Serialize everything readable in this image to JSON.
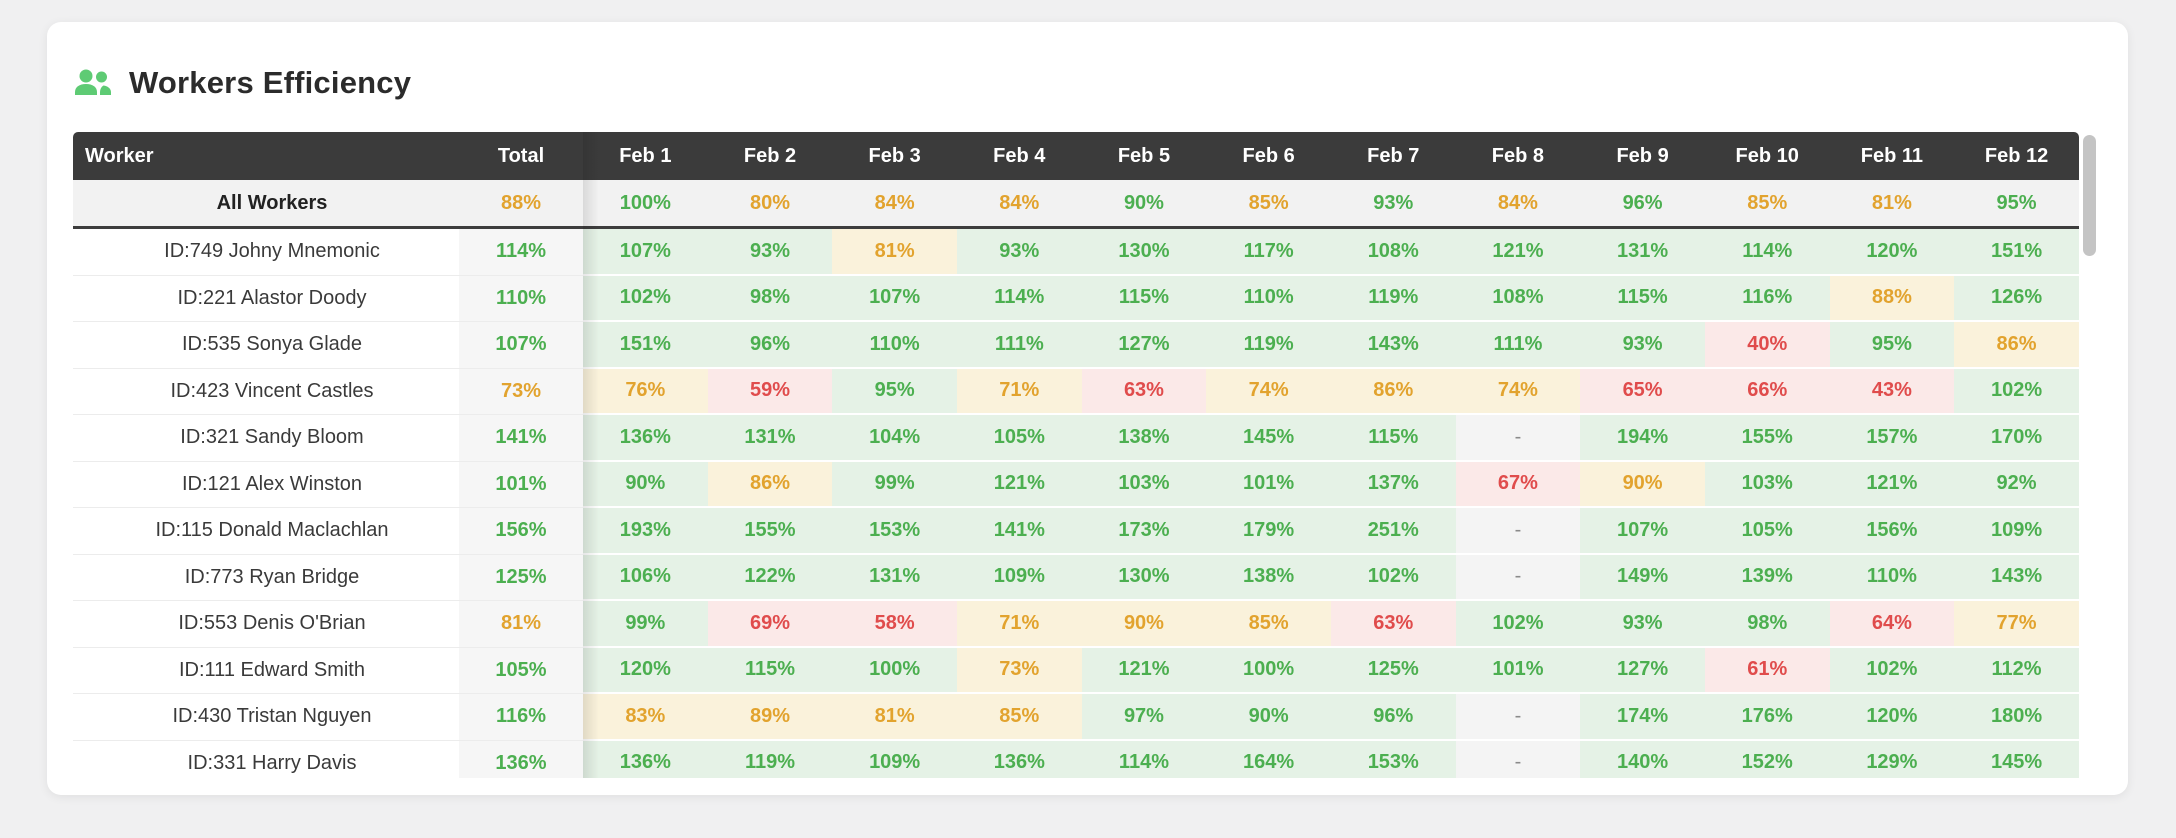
{
  "header": {
    "title": "Workers Efficiency",
    "icon": "users-icon"
  },
  "colors": {
    "accent_green_text": "#4caf50",
    "amber_text": "#e2a32e",
    "red_text": "#e04c4c",
    "green_cell_bg": "#e5f2e6",
    "amber_cell_bg": "#faf2db",
    "red_cell_bg": "#fbe9e8",
    "no_data_cell_bg": "#f4f4f4",
    "table_header_bg": "#3b3b3b",
    "summary_row_bg": "#f2f2f2",
    "total_column_bg": "#f6f6f6",
    "icon_green": "#5ecb74"
  },
  "status_legend": {
    "g": "green",
    "a": "amber",
    "r": "red",
    "n": "no-data"
  },
  "table": {
    "columns": [
      "Worker",
      "Total",
      "Feb 1",
      "Feb 2",
      "Feb 3",
      "Feb 4",
      "Feb 5",
      "Feb 6",
      "Feb 7",
      "Feb 8",
      "Feb 9",
      "Feb 10",
      "Feb 11",
      "Feb 12"
    ],
    "summary_row": {
      "label": "All Workers",
      "total": [
        "88%",
        "a"
      ],
      "cells": [
        [
          "100%",
          "g"
        ],
        [
          "80%",
          "a"
        ],
        [
          "84%",
          "a"
        ],
        [
          "84%",
          "a"
        ],
        [
          "90%",
          "g"
        ],
        [
          "85%",
          "a"
        ],
        [
          "93%",
          "g"
        ],
        [
          "84%",
          "a"
        ],
        [
          "96%",
          "g"
        ],
        [
          "85%",
          "a"
        ],
        [
          "81%",
          "a"
        ],
        [
          "95%",
          "g"
        ]
      ]
    },
    "rows": [
      {
        "worker": "ID:749 Johny Mnemonic",
        "total": [
          "114%",
          "g"
        ],
        "cells": [
          [
            "107%",
            "g"
          ],
          [
            "93%",
            "g"
          ],
          [
            "81%",
            "a"
          ],
          [
            "93%",
            "g"
          ],
          [
            "130%",
            "g"
          ],
          [
            "117%",
            "g"
          ],
          [
            "108%",
            "g"
          ],
          [
            "121%",
            "g"
          ],
          [
            "131%",
            "g"
          ],
          [
            "114%",
            "g"
          ],
          [
            "120%",
            "g"
          ],
          [
            "151%",
            "g"
          ]
        ]
      },
      {
        "worker": "ID:221 Alastor Doody",
        "total": [
          "110%",
          "g"
        ],
        "cells": [
          [
            "102%",
            "g"
          ],
          [
            "98%",
            "g"
          ],
          [
            "107%",
            "g"
          ],
          [
            "114%",
            "g"
          ],
          [
            "115%",
            "g"
          ],
          [
            "110%",
            "g"
          ],
          [
            "119%",
            "g"
          ],
          [
            "108%",
            "g"
          ],
          [
            "115%",
            "g"
          ],
          [
            "116%",
            "g"
          ],
          [
            "88%",
            "a"
          ],
          [
            "126%",
            "g"
          ]
        ]
      },
      {
        "worker": "ID:535 Sonya Glade",
        "total": [
          "107%",
          "g"
        ],
        "cells": [
          [
            "151%",
            "g"
          ],
          [
            "96%",
            "g"
          ],
          [
            "110%",
            "g"
          ],
          [
            "111%",
            "g"
          ],
          [
            "127%",
            "g"
          ],
          [
            "119%",
            "g"
          ],
          [
            "143%",
            "g"
          ],
          [
            "111%",
            "g"
          ],
          [
            "93%",
            "g"
          ],
          [
            "40%",
            "r"
          ],
          [
            "95%",
            "g"
          ],
          [
            "86%",
            "a"
          ]
        ]
      },
      {
        "worker": "ID:423 Vincent Castles",
        "total": [
          "73%",
          "a"
        ],
        "cells": [
          [
            "76%",
            "a"
          ],
          [
            "59%",
            "r"
          ],
          [
            "95%",
            "g"
          ],
          [
            "71%",
            "a"
          ],
          [
            "63%",
            "r"
          ],
          [
            "74%",
            "a"
          ],
          [
            "86%",
            "a"
          ],
          [
            "74%",
            "a"
          ],
          [
            "65%",
            "r"
          ],
          [
            "66%",
            "r"
          ],
          [
            "43%",
            "r"
          ],
          [
            "102%",
            "g"
          ]
        ]
      },
      {
        "worker": "ID:321 Sandy Bloom",
        "total": [
          "141%",
          "g"
        ],
        "cells": [
          [
            "136%",
            "g"
          ],
          [
            "131%",
            "g"
          ],
          [
            "104%",
            "g"
          ],
          [
            "105%",
            "g"
          ],
          [
            "138%",
            "g"
          ],
          [
            "145%",
            "g"
          ],
          [
            "115%",
            "g"
          ],
          [
            "-",
            "n"
          ],
          [
            "194%",
            "g"
          ],
          [
            "155%",
            "g"
          ],
          [
            "157%",
            "g"
          ],
          [
            "170%",
            "g"
          ]
        ]
      },
      {
        "worker": "ID:121 Alex Winston",
        "total": [
          "101%",
          "g"
        ],
        "cells": [
          [
            "90%",
            "g"
          ],
          [
            "86%",
            "a"
          ],
          [
            "99%",
            "g"
          ],
          [
            "121%",
            "g"
          ],
          [
            "103%",
            "g"
          ],
          [
            "101%",
            "g"
          ],
          [
            "137%",
            "g"
          ],
          [
            "67%",
            "r"
          ],
          [
            "90%",
            "a"
          ],
          [
            "103%",
            "g"
          ],
          [
            "121%",
            "g"
          ],
          [
            "92%",
            "g"
          ]
        ]
      },
      {
        "worker": "ID:115 Donald Maclachlan",
        "total": [
          "156%",
          "g"
        ],
        "cells": [
          [
            "193%",
            "g"
          ],
          [
            "155%",
            "g"
          ],
          [
            "153%",
            "g"
          ],
          [
            "141%",
            "g"
          ],
          [
            "173%",
            "g"
          ],
          [
            "179%",
            "g"
          ],
          [
            "251%",
            "g"
          ],
          [
            "-",
            "n"
          ],
          [
            "107%",
            "g"
          ],
          [
            "105%",
            "g"
          ],
          [
            "156%",
            "g"
          ],
          [
            "109%",
            "g"
          ]
        ]
      },
      {
        "worker": "ID:773 Ryan Bridge",
        "total": [
          "125%",
          "g"
        ],
        "cells": [
          [
            "106%",
            "g"
          ],
          [
            "122%",
            "g"
          ],
          [
            "131%",
            "g"
          ],
          [
            "109%",
            "g"
          ],
          [
            "130%",
            "g"
          ],
          [
            "138%",
            "g"
          ],
          [
            "102%",
            "g"
          ],
          [
            "-",
            "n"
          ],
          [
            "149%",
            "g"
          ],
          [
            "139%",
            "g"
          ],
          [
            "110%",
            "g"
          ],
          [
            "143%",
            "g"
          ]
        ]
      },
      {
        "worker": "ID:553 Denis O'Brian",
        "total": [
          "81%",
          "a"
        ],
        "cells": [
          [
            "99%",
            "g"
          ],
          [
            "69%",
            "r"
          ],
          [
            "58%",
            "r"
          ],
          [
            "71%",
            "a"
          ],
          [
            "90%",
            "a"
          ],
          [
            "85%",
            "a"
          ],
          [
            "63%",
            "r"
          ],
          [
            "102%",
            "g"
          ],
          [
            "93%",
            "g"
          ],
          [
            "98%",
            "g"
          ],
          [
            "64%",
            "r"
          ],
          [
            "77%",
            "a"
          ]
        ]
      },
      {
        "worker": "ID:111 Edward Smith",
        "total": [
          "105%",
          "g"
        ],
        "cells": [
          [
            "120%",
            "g"
          ],
          [
            "115%",
            "g"
          ],
          [
            "100%",
            "g"
          ],
          [
            "73%",
            "a"
          ],
          [
            "121%",
            "g"
          ],
          [
            "100%",
            "g"
          ],
          [
            "125%",
            "g"
          ],
          [
            "101%",
            "g"
          ],
          [
            "127%",
            "g"
          ],
          [
            "61%",
            "r"
          ],
          [
            "102%",
            "g"
          ],
          [
            "112%",
            "g"
          ]
        ]
      },
      {
        "worker": "ID:430 Tristan Nguyen",
        "total": [
          "116%",
          "g"
        ],
        "cells": [
          [
            "83%",
            "a"
          ],
          [
            "89%",
            "a"
          ],
          [
            "81%",
            "a"
          ],
          [
            "85%",
            "a"
          ],
          [
            "97%",
            "g"
          ],
          [
            "90%",
            "g"
          ],
          [
            "96%",
            "g"
          ],
          [
            "-",
            "n"
          ],
          [
            "174%",
            "g"
          ],
          [
            "176%",
            "g"
          ],
          [
            "120%",
            "g"
          ],
          [
            "180%",
            "g"
          ]
        ]
      },
      {
        "worker": "ID:331 Harry Davis",
        "total": [
          "136%",
          "g"
        ],
        "cells": [
          [
            "136%",
            "g"
          ],
          [
            "119%",
            "g"
          ],
          [
            "109%",
            "g"
          ],
          [
            "136%",
            "g"
          ],
          [
            "114%",
            "g"
          ],
          [
            "164%",
            "g"
          ],
          [
            "153%",
            "g"
          ],
          [
            "-",
            "n"
          ],
          [
            "140%",
            "g"
          ],
          [
            "152%",
            "g"
          ],
          [
            "129%",
            "g"
          ],
          [
            "145%",
            "g"
          ]
        ]
      }
    ]
  },
  "scrollbar": {
    "orientation": "vertical",
    "thumb_position": "top"
  }
}
